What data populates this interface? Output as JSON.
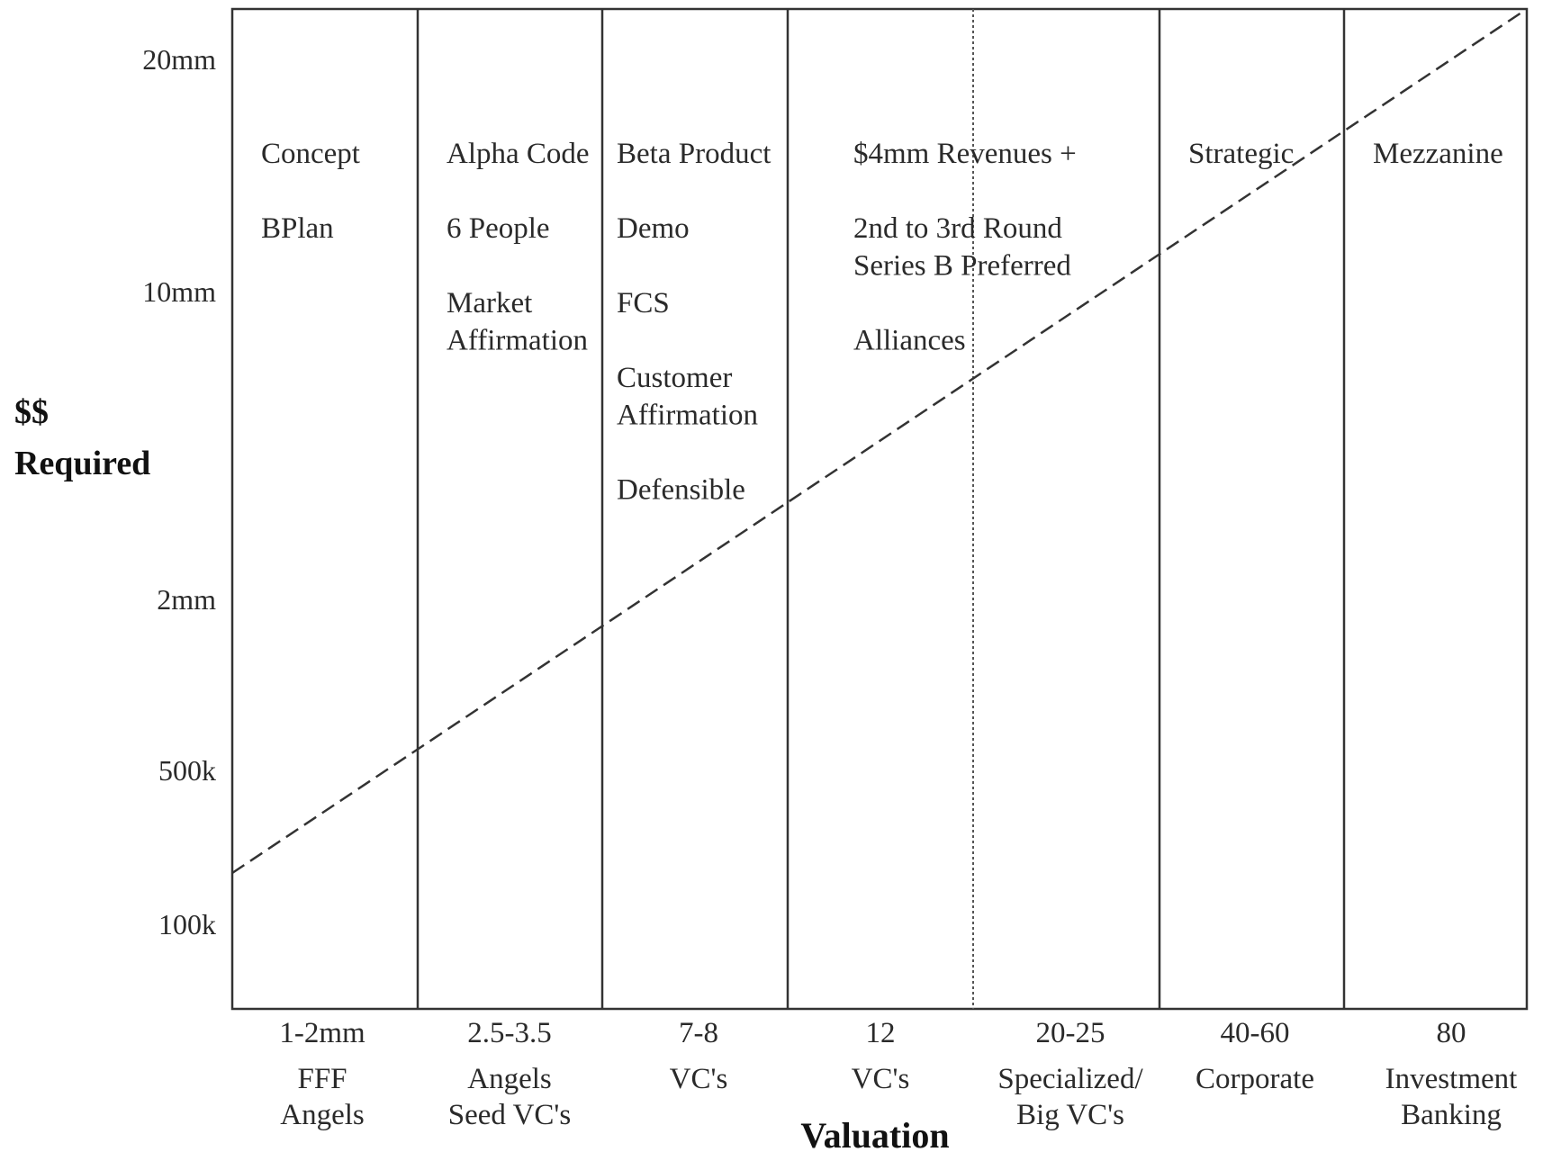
{
  "chart_data": {
    "type": "line",
    "xlabel": "Valuation",
    "ylabel_lines": [
      "$$",
      "Required"
    ],
    "categories": [
      {
        "value": "1-2mm",
        "investors": [
          "FFF",
          "Angels"
        ]
      },
      {
        "value": "2.5-3.5",
        "investors": [
          "Angels",
          "Seed VC's"
        ]
      },
      {
        "value": "7-8",
        "investors": [
          "VC's"
        ]
      },
      {
        "value": "12",
        "investors": [
          "VC's"
        ]
      },
      {
        "value": "20-25",
        "investors": [
          "Specialized/",
          "Big VC's"
        ]
      },
      {
        "value": "40-60",
        "investors": [
          "Corporate"
        ]
      },
      {
        "value": "80",
        "investors": [
          "Investment",
          "Banking"
        ]
      }
    ],
    "y_ticks": [
      "20mm",
      "10mm",
      "2mm",
      "500k",
      "100k"
    ],
    "stages": [
      {
        "column": 0,
        "lines": [
          "Concept",
          "",
          "BPlan"
        ]
      },
      {
        "column": 1,
        "lines": [
          "Alpha Code",
          "",
          "6 People",
          "",
          "Market",
          "Affirmation"
        ]
      },
      {
        "column": 2,
        "lines": [
          "Beta Product",
          "",
          "Demo",
          "",
          "FCS",
          "",
          "Customer",
          "Affirmation",
          "",
          "Defensible"
        ]
      },
      {
        "column": 3,
        "lines": [
          "$4mm Revenues +",
          "",
          "2nd to 3rd Round",
          "Series B Preferred",
          "",
          "Alliances"
        ]
      },
      {
        "column": 5,
        "lines": [
          "Strategic"
        ]
      },
      {
        "column": 6,
        "lines": [
          "Mezzanine"
        ]
      }
    ],
    "trend": {
      "style": "dashed",
      "from": "below 100k",
      "to": "above 20mm"
    },
    "grid": "vertical column dividers",
    "colors": {
      "line": "#333333",
      "text": "#2a2a2a"
    }
  }
}
